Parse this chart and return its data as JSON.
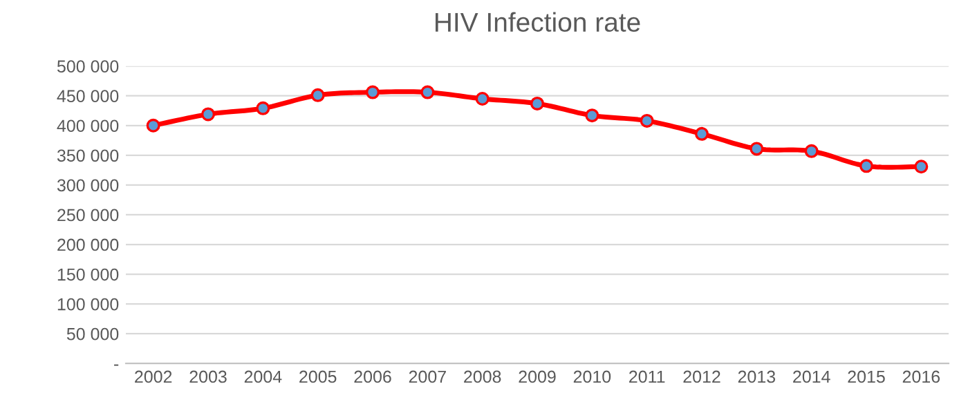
{
  "chart_data": {
    "type": "line",
    "title": "HIV Infection rate",
    "categories": [
      "2002",
      "2003",
      "2004",
      "2005",
      "2006",
      "2007",
      "2008",
      "2009",
      "2010",
      "2011",
      "2012",
      "2013",
      "2014",
      "2015",
      "2016"
    ],
    "series": [
      {
        "color": "#ff0000",
        "values": [
          400000,
          419000,
          429000,
          451000,
          456000,
          456000,
          445000,
          437000,
          417000,
          408000,
          386000,
          361000,
          357000,
          332000,
          331000
        ]
      }
    ],
    "ylim": [
      0,
      500000
    ],
    "yticks": [
      {
        "value": 0,
        "label": "-"
      },
      {
        "value": 50000,
        "label": "50 000"
      },
      {
        "value": 100000,
        "label": "100 000"
      },
      {
        "value": 150000,
        "label": "150 000"
      },
      {
        "value": 200000,
        "label": "200 000"
      },
      {
        "value": 250000,
        "label": "250 000"
      },
      {
        "value": 300000,
        "label": "300 000"
      },
      {
        "value": 350000,
        "label": "350 000"
      },
      {
        "value": 400000,
        "label": "400 000"
      },
      {
        "value": 450000,
        "label": "450 000"
      },
      {
        "value": 500000,
        "label": "500 000"
      }
    ],
    "grid": "y",
    "marker": "circle",
    "line_style": "solid",
    "legend": false
  }
}
